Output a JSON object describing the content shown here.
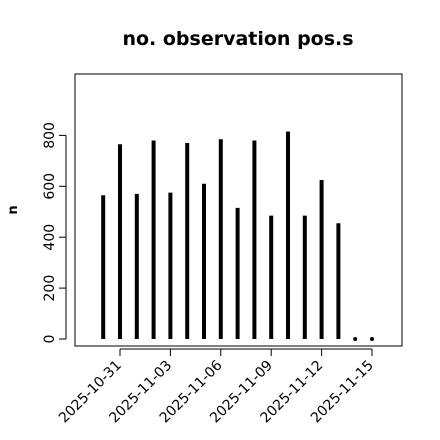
{
  "chart_data": {
    "type": "bar",
    "title": "no. observation pos.s",
    "xlabel": "",
    "ylabel": "n",
    "ylim": [
      -5,
      1000
    ],
    "y_ticks": [
      0,
      200,
      400,
      600,
      800
    ],
    "x_tick_labels": [
      "2025-10-31",
      "2025-11-03",
      "2025-11-06",
      "2025-11-09",
      "2025-11-12",
      "2025-11-15"
    ],
    "x_tick_dates": [
      "2025-10-31",
      "2025-11-03",
      "2025-11-06",
      "2025-11-09",
      "2025-11-12",
      "2025-11-15"
    ],
    "highlight_tick": "2025-11-06",
    "highlight_color": "#228b22",
    "bar_color": "#000000",
    "grid": false,
    "points": [
      {
        "date": "2025-10-30",
        "value": 565
      },
      {
        "date": "2025-10-31",
        "value": 765
      },
      {
        "date": "2025-11-01",
        "value": 570
      },
      {
        "date": "2025-11-02",
        "value": 780
      },
      {
        "date": "2025-11-03",
        "value": 575
      },
      {
        "date": "2025-11-04",
        "value": 770
      },
      {
        "date": "2025-11-05",
        "value": 610
      },
      {
        "date": "2025-11-06",
        "value": 785
      },
      {
        "date": "2025-11-07",
        "value": 515
      },
      {
        "date": "2025-11-08",
        "value": 780
      },
      {
        "date": "2025-11-09",
        "value": 485
      },
      {
        "date": "2025-11-10",
        "value": 815
      },
      {
        "date": "2025-11-11",
        "value": 485
      },
      {
        "date": "2025-11-12",
        "value": 625
      },
      {
        "date": "2025-11-13",
        "value": 455
      },
      {
        "date": "2025-11-14",
        "value": 0
      },
      {
        "date": "2025-11-15",
        "value": 0
      }
    ]
  }
}
